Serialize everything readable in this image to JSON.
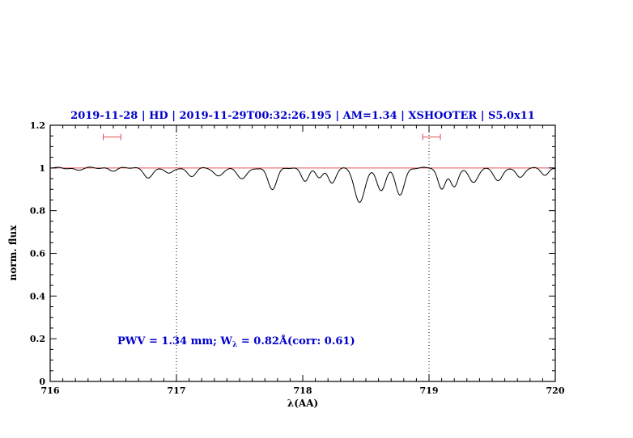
{
  "chart_data": {
    "type": "line",
    "title": "2019-11-28 | HD | 2019-11-29T00:32:26.195 | AM=1.34 | XSHOOTER | S5.0x11",
    "xlabel": "λ(AA)",
    "ylabel": "norm. flux",
    "xlim": [
      716,
      720
    ],
    "ylim": [
      0,
      1.2
    ],
    "x_ticks": [
      "716",
      "717",
      "718",
      "719",
      "720"
    ],
    "y_ticks": [
      "0",
      "0.2",
      "0.4",
      "0.6",
      "0.8",
      "1",
      "1.2"
    ],
    "x_minor_step": 0.1,
    "y_minor_step": 0.05,
    "dotted_vlines": [
      717,
      719
    ],
    "continuum_line_y": 1.0,
    "annotation": {
      "text": "PWV = 1.34 mm; Wλ = 0.82Å(corr: 0.61)",
      "prefix": "PWV = 1.34 mm; W",
      "sub": "λ",
      "suffix": " = 0.82Å(corr: 0.61)"
    },
    "colors": {
      "title": "#0000cc",
      "annotation": "#0000cc",
      "continuum": "#e05050",
      "markers": "#e05050",
      "spectrum": "#000000",
      "frame": "#000000"
    },
    "range_markers": [
      {
        "x1": 716.42,
        "x2": 716.56,
        "y": 1.145
      },
      {
        "x1": 718.95,
        "x2": 719.09,
        "y": 1.145
      }
    ],
    "spectrum": {
      "continuum": 1.0,
      "noise_amplitude": 0.0025,
      "sample_step": 0.008,
      "absorption_lines": [
        {
          "center": 716.22,
          "depth": 0.01,
          "sigma": 0.03
        },
        {
          "center": 716.5,
          "depth": 0.012,
          "sigma": 0.03
        },
        {
          "center": 716.78,
          "depth": 0.045,
          "sigma": 0.035
        },
        {
          "center": 716.94,
          "depth": 0.028,
          "sigma": 0.03
        },
        {
          "center": 717.12,
          "depth": 0.038,
          "sigma": 0.035
        },
        {
          "center": 717.33,
          "depth": 0.038,
          "sigma": 0.035
        },
        {
          "center": 717.52,
          "depth": 0.05,
          "sigma": 0.04
        },
        {
          "center": 717.76,
          "depth": 0.1,
          "sigma": 0.035
        },
        {
          "center": 718.02,
          "depth": 0.06,
          "sigma": 0.03
        },
        {
          "center": 718.13,
          "depth": 0.045,
          "sigma": 0.028
        },
        {
          "center": 718.23,
          "depth": 0.07,
          "sigma": 0.03
        },
        {
          "center": 718.45,
          "depth": 0.165,
          "sigma": 0.04
        },
        {
          "center": 718.62,
          "depth": 0.105,
          "sigma": 0.035
        },
        {
          "center": 718.77,
          "depth": 0.125,
          "sigma": 0.035
        },
        {
          "center": 719.1,
          "depth": 0.1,
          "sigma": 0.03
        },
        {
          "center": 719.2,
          "depth": 0.09,
          "sigma": 0.03
        },
        {
          "center": 719.35,
          "depth": 0.07,
          "sigma": 0.035
        },
        {
          "center": 719.55,
          "depth": 0.06,
          "sigma": 0.035
        },
        {
          "center": 719.72,
          "depth": 0.045,
          "sigma": 0.03
        },
        {
          "center": 719.92,
          "depth": 0.035,
          "sigma": 0.03
        }
      ]
    }
  }
}
